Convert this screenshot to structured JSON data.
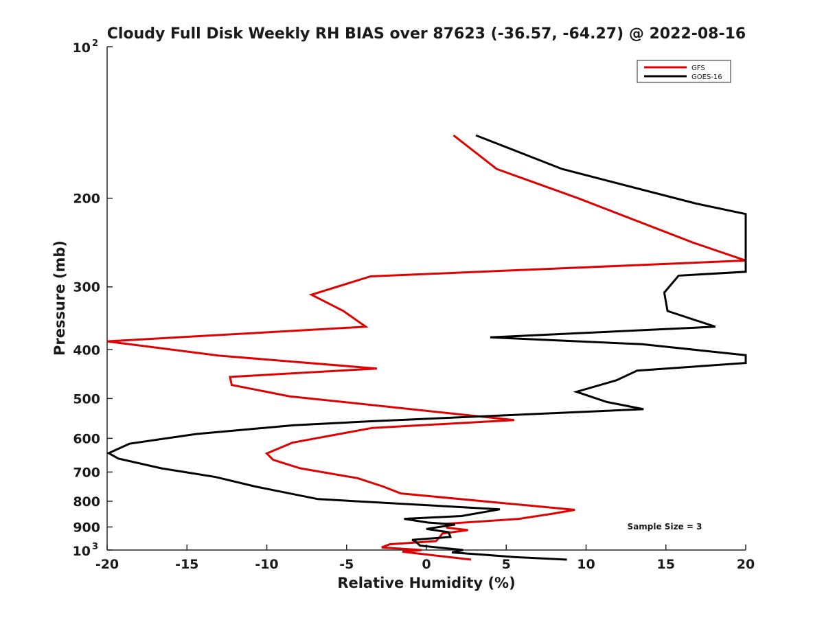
{
  "chart_data": {
    "type": "line",
    "title": "Cloudy Full Disk Weekly RH BIAS over 87623 (-36.57, -64.27) @ 2022-08-16",
    "xlabel": "Relative Humidity (%)",
    "ylabel": "Pressure (mb)",
    "xlim": [
      -20,
      20
    ],
    "ylim": [
      100,
      1000
    ],
    "y_scale": "log",
    "y_reversed": true,
    "grid": false,
    "legend_position": "top-right",
    "x_ticks": [
      "-20",
      "-15",
      "-10",
      "-5",
      "0",
      "5",
      "10",
      "15",
      "20"
    ],
    "y_ticks": [
      "200",
      "300",
      "400",
      "500",
      "600",
      "700",
      "800",
      "900"
    ],
    "y_ticks_exp": [
      {
        "base": "10",
        "exp": "2",
        "value": 100
      },
      {
        "base": "10",
        "exp": "3",
        "value": 1000
      }
    ],
    "annotation": "Sample Size = 3",
    "series": [
      {
        "name": "GFS",
        "color": "#e00000",
        "points": [
          [
            1.7,
            150
          ],
          [
            4.4,
            175
          ],
          [
            9.5,
            200
          ],
          [
            16.7,
            245
          ],
          [
            20.0,
            266
          ],
          [
            -3.5,
            286
          ],
          [
            -7.2,
            311
          ],
          [
            -5.2,
            335
          ],
          [
            -3.8,
            360
          ],
          [
            -20.0,
            385
          ],
          [
            -13.0,
            411
          ],
          [
            -3.1,
            436
          ],
          [
            -12.3,
            453
          ],
          [
            -12.2,
            470
          ],
          [
            -8.6,
            495
          ],
          [
            5.5,
            552
          ],
          [
            -3.4,
            572
          ],
          [
            -8.4,
            612
          ],
          [
            -10.0,
            643
          ],
          [
            -9.6,
            662
          ],
          [
            -7.9,
            688
          ],
          [
            -4.3,
            720
          ],
          [
            -2.7,
            748
          ],
          [
            -1.6,
            772
          ],
          [
            5.0,
            808
          ],
          [
            9.3,
            832
          ],
          [
            7.8,
            848
          ],
          [
            5.8,
            867
          ],
          [
            1.2,
            887
          ],
          [
            1.3,
            903
          ],
          [
            2.6,
            913
          ],
          [
            1.0,
            927
          ],
          [
            0.8,
            945
          ],
          [
            0.6,
            960
          ],
          [
            -2.3,
            974
          ],
          [
            -2.8,
            988
          ],
          [
            -0.3,
            1000
          ],
          [
            -1.5,
            1008
          ],
          [
            -0.1,
            1020
          ],
          [
            1.7,
            1035
          ],
          [
            2.8,
            1045
          ]
        ]
      },
      {
        "name": "GOES-16",
        "color": "#000000",
        "points": [
          [
            3.1,
            150
          ],
          [
            8.5,
            175
          ],
          [
            16.9,
            205
          ],
          [
            20.0,
            215
          ],
          [
            20.0,
            280
          ],
          [
            15.8,
            285
          ],
          [
            14.9,
            308
          ],
          [
            15.1,
            335
          ],
          [
            18.1,
            360
          ],
          [
            4.0,
            378
          ],
          [
            13.5,
            390
          ],
          [
            20.0,
            410
          ],
          [
            20.0,
            425
          ],
          [
            13.2,
            440
          ],
          [
            11.9,
            460
          ],
          [
            9.4,
            485
          ],
          [
            11.3,
            508
          ],
          [
            13.6,
            525
          ],
          [
            -3.6,
            555
          ],
          [
            -8.3,
            565
          ],
          [
            -14.4,
            588
          ],
          [
            -18.6,
            615
          ],
          [
            -19.9,
            642
          ],
          [
            -19.3,
            658
          ],
          [
            -16.6,
            688
          ],
          [
            -13.2,
            716
          ],
          [
            -10.7,
            748
          ],
          [
            -6.8,
            792
          ],
          [
            4.6,
            830
          ],
          [
            2.2,
            856
          ],
          [
            -1.4,
            867
          ],
          [
            0.1,
            882
          ],
          [
            1.8,
            890
          ],
          [
            0.0,
            908
          ],
          [
            1.4,
            922
          ],
          [
            1.5,
            942
          ],
          [
            -0.9,
            955
          ],
          [
            -0.7,
            960
          ],
          [
            -0.4,
            980
          ],
          [
            2.3,
            1000
          ],
          [
            1.6,
            1011
          ],
          [
            3.6,
            1022
          ],
          [
            5.5,
            1033
          ],
          [
            8.8,
            1045
          ]
        ]
      }
    ]
  }
}
